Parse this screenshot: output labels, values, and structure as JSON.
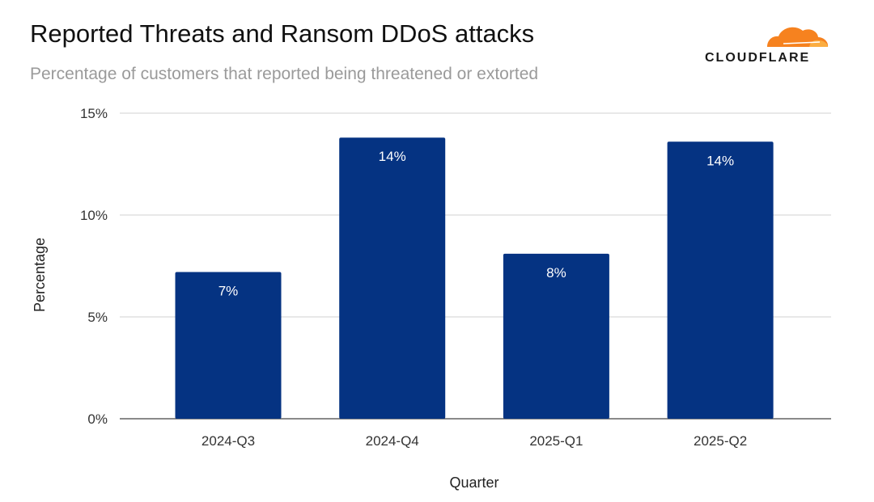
{
  "chart_data": {
    "type": "bar",
    "title": "Reported Threats and Ransom DDoS attacks",
    "subtitle": "Percentage of customers that reported being threatened or extorted",
    "xlabel": "Quarter",
    "ylabel": "Percentage",
    "categories": [
      "2024-Q3",
      "2024-Q4",
      "2025-Q1",
      "2025-Q2"
    ],
    "values": [
      7.2,
      13.8,
      8.1,
      13.6
    ],
    "data_labels": [
      "7%",
      "14%",
      "8%",
      "14%"
    ],
    "ylim": [
      0,
      15
    ],
    "yticks": [
      0,
      5,
      10,
      15
    ],
    "ytick_labels": [
      "0%",
      "5%",
      "10%",
      "15%"
    ],
    "grid": true,
    "legend": "none",
    "bar_color": "#053382"
  },
  "brand": {
    "logo_text": "CLOUDFLARE",
    "logo_color": "#f6821f"
  }
}
